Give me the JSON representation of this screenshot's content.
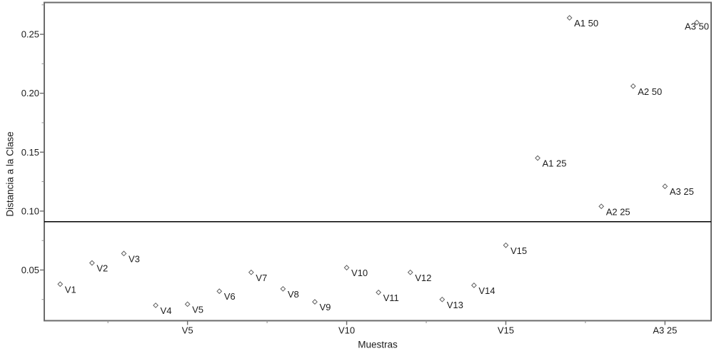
{
  "figure": {
    "background": "#ffffff",
    "box_color": "#6b6b6b",
    "tick_color": "#6b6b6b",
    "minor_tick_color": "#8a8a8a",
    "text_color": "#1c1c1c",
    "marker_color": "#5f5f5f",
    "marker_fill": "#ffffff",
    "threshold_color": "#000000"
  },
  "chart_data": {
    "type": "scatter",
    "title": "",
    "xlabel": "Muestras",
    "ylabel": "Distancia a la Clase",
    "xlim": [
      0.5,
      21.45
    ],
    "ylim": [
      0.007,
      0.277
    ],
    "grid": false,
    "legend": false,
    "threshold_line": 0.091,
    "y_major_ticks": [
      {
        "v": 0.05,
        "label": "0.05"
      },
      {
        "v": 0.1,
        "label": "0.10"
      },
      {
        "v": 0.15,
        "label": "0.15"
      },
      {
        "v": 0.2,
        "label": "0.20"
      },
      {
        "v": 0.25,
        "label": "0.25"
      }
    ],
    "y_minor_ticks": [
      0.025,
      0.075,
      0.125,
      0.175,
      0.225,
      0.275
    ],
    "x_major_ticks": [
      {
        "v": 5,
        "label": "V5"
      },
      {
        "v": 10,
        "label": "V10"
      },
      {
        "v": 15,
        "label": "V15"
      },
      {
        "v": 20,
        "label": "A3 25"
      }
    ],
    "x_minor_ticks": [
      2.5,
      7.5,
      12.5,
      17.5
    ],
    "points": [
      {
        "label": "V1",
        "x": 1,
        "y": 0.038
      },
      {
        "label": "V2",
        "x": 2,
        "y": 0.056
      },
      {
        "label": "V3",
        "x": 3,
        "y": 0.064
      },
      {
        "label": "V4",
        "x": 4,
        "y": 0.02
      },
      {
        "label": "V5",
        "x": 5,
        "y": 0.021
      },
      {
        "label": "V6",
        "x": 6,
        "y": 0.032
      },
      {
        "label": "V7",
        "x": 7,
        "y": 0.048
      },
      {
        "label": "V8",
        "x": 8,
        "y": 0.034
      },
      {
        "label": "V9",
        "x": 9,
        "y": 0.023
      },
      {
        "label": "V10",
        "x": 10,
        "y": 0.052
      },
      {
        "label": "V11",
        "x": 11,
        "y": 0.031
      },
      {
        "label": "V12",
        "x": 12,
        "y": 0.048
      },
      {
        "label": "V13",
        "x": 13,
        "y": 0.025
      },
      {
        "label": "V14",
        "x": 14,
        "y": 0.037
      },
      {
        "label": "V15",
        "x": 15,
        "y": 0.071
      },
      {
        "label": "A1 25",
        "x": 16,
        "y": 0.145
      },
      {
        "label": "A1 50",
        "x": 17,
        "y": 0.264
      },
      {
        "label": "A2 25",
        "x": 18,
        "y": 0.104
      },
      {
        "label": "A2 50",
        "x": 19,
        "y": 0.206
      },
      {
        "label": "A3 25",
        "x": 20,
        "y": 0.121
      },
      {
        "label": "A3 50",
        "x": 21,
        "y": 0.26,
        "label_side": "left"
      }
    ]
  }
}
